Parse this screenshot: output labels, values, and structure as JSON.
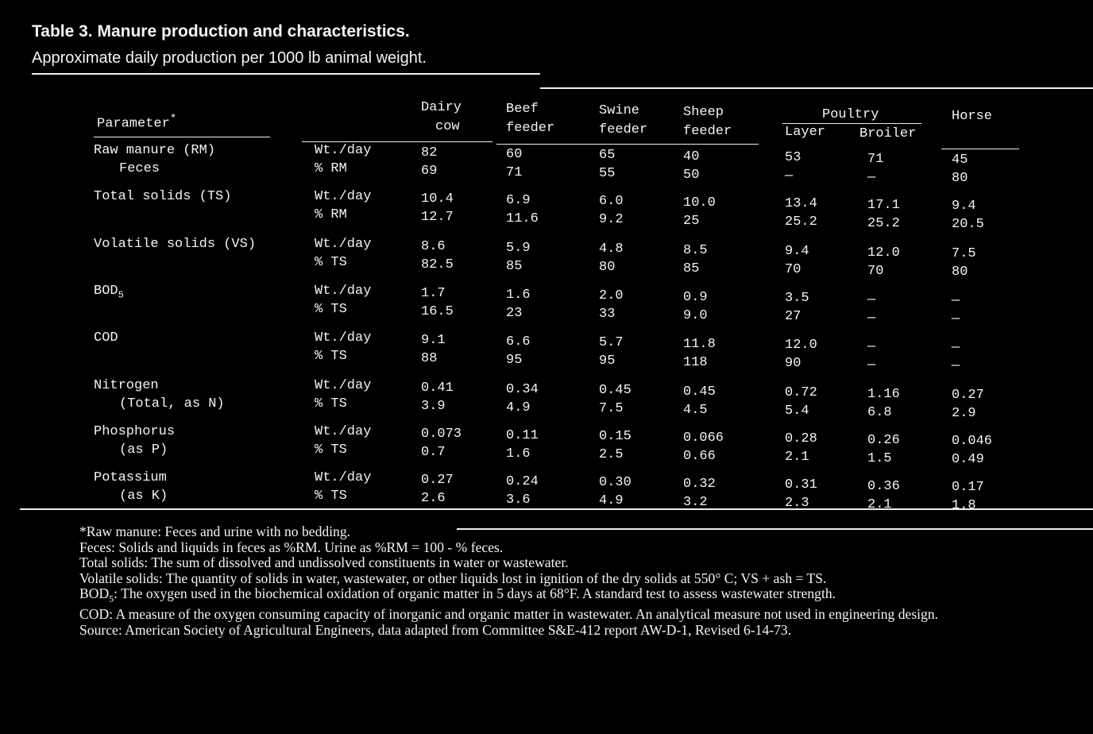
{
  "header": {
    "title": "Table 3. Manure production and characteristics.",
    "subtitle": "Approximate daily production per 1000 lb animal weight."
  },
  "table": {
    "parameter_heading": "Parameter",
    "parameter_mark": "*",
    "poultry_heading": "Poultry",
    "columns": [
      [
        "Dairy",
        "cow"
      ],
      [
        "Beef",
        "feeder"
      ],
      [
        "Swine",
        "feeder"
      ],
      [
        "Sheep",
        "feeder"
      ],
      [
        "Layer"
      ],
      [
        "Broiler"
      ],
      [
        "Horse"
      ]
    ],
    "groups": [
      {
        "label": [
          "Raw manure (RM)",
          "Feces"
        ],
        "rows": [
          {
            "unit": "Wt./day",
            "values": [
              "82",
              "60",
              "65",
              "40",
              "53",
              "71",
              "45"
            ]
          },
          {
            "unit": "% RM",
            "values": [
              "69",
              "71",
              "55",
              "50",
              "—",
              "—",
              "80"
            ]
          }
        ]
      },
      {
        "label": [
          "Total solids (TS)"
        ],
        "rows": [
          {
            "unit": "Wt./day",
            "values": [
              "10.4",
              "6.9",
              "6.0",
              "10.0",
              "13.4",
              "17.1",
              "9.4"
            ]
          },
          {
            "unit": "% RM",
            "values": [
              "12.7",
              "11.6",
              "9.2",
              "25",
              "25.2",
              "25.2",
              "20.5"
            ]
          }
        ]
      },
      {
        "label": [
          "Volatile solids (VS)"
        ],
        "rows": [
          {
            "unit": "Wt./day",
            "values": [
              "8.6",
              "5.9",
              "4.8",
              "8.5",
              "9.4",
              "12.0",
              "7.5"
            ]
          },
          {
            "unit": "% TS",
            "values": [
              "82.5",
              "85",
              "80",
              "85",
              "70",
              "70",
              "80"
            ]
          }
        ]
      },
      {
        "label": [
          "BOD"
        ],
        "label_sub": "5",
        "rows": [
          {
            "unit": "Wt./day",
            "values": [
              "1.7",
              "1.6",
              "2.0",
              "0.9",
              "3.5",
              "—",
              "—"
            ]
          },
          {
            "unit": "% TS",
            "values": [
              "16.5",
              "23",
              "33",
              "9.0",
              "27",
              "—",
              "—"
            ]
          }
        ]
      },
      {
        "label": [
          "COD"
        ],
        "rows": [
          {
            "unit": "Wt./day",
            "values": [
              "9.1",
              "6.6",
              "5.7",
              "11.8",
              "12.0",
              "—",
              "—"
            ]
          },
          {
            "unit": "% TS",
            "values": [
              "88",
              "95",
              "95",
              "118",
              "90",
              "—",
              "—"
            ]
          }
        ]
      },
      {
        "label": [
          "Nitrogen",
          "(Total, as N)"
        ],
        "rows": [
          {
            "unit": "Wt./day",
            "values": [
              "0.41",
              "0.34",
              "0.45",
              "0.45",
              "0.72",
              "1.16",
              "0.27"
            ]
          },
          {
            "unit": "% TS",
            "values": [
              "3.9",
              "4.9",
              "7.5",
              "4.5",
              "5.4",
              "6.8",
              "2.9"
            ]
          }
        ]
      },
      {
        "label": [
          "Phosphorus",
          "(as P)"
        ],
        "rows": [
          {
            "unit": "Wt./day",
            "values": [
              "0.073",
              "0.11",
              "0.15",
              "0.066",
              "0.28",
              "0.26",
              "0.046"
            ]
          },
          {
            "unit": "% TS",
            "values": [
              "0.7",
              "1.6",
              "2.5",
              "0.66",
              "2.1",
              "1.5",
              "0.49"
            ]
          }
        ]
      },
      {
        "label": [
          "Potassium",
          "(as K)"
        ],
        "rows": [
          {
            "unit": "Wt./day",
            "values": [
              "0.27",
              "0.24",
              "0.30",
              "0.32",
              "0.31",
              "0.36",
              "0.17"
            ]
          },
          {
            "unit": "% TS",
            "values": [
              "2.6",
              "3.6",
              "4.9",
              "3.2",
              "2.3",
              "2.1",
              "1.8"
            ]
          }
        ]
      }
    ]
  },
  "footnotes": [
    {
      "text": "*Raw manure: Feces and urine with no bedding."
    },
    {
      "text": "Feces: Solids and liquids in feces as %RM. Urine as %RM = 100 - % feces."
    },
    {
      "text": "Total solids: The sum of dissolved and undissolved constituents in water or wastewater."
    },
    {
      "text": "Volatile solids: The quantity of solids in water, wastewater, or other liquids lost in ignition of the dry solids at 550° C; VS + ash = TS."
    },
    {
      "lead": "BOD",
      "sub": "5",
      "text": ": The oxygen used in the biochemical oxidation of organic matter in 5 days at 68°F. A standard test to assess wastewater strength."
    },
    {
      "text": "COD: A measure of the oxygen consuming capacity of inorganic and organic matter in wastewater. An analytical measure not used in engineering design."
    },
    {
      "text": "Source: American Society of Agricultural Engineers, data adapted from Committee S&E-412 report AW-D-1, Revised 6-14-73."
    }
  ]
}
